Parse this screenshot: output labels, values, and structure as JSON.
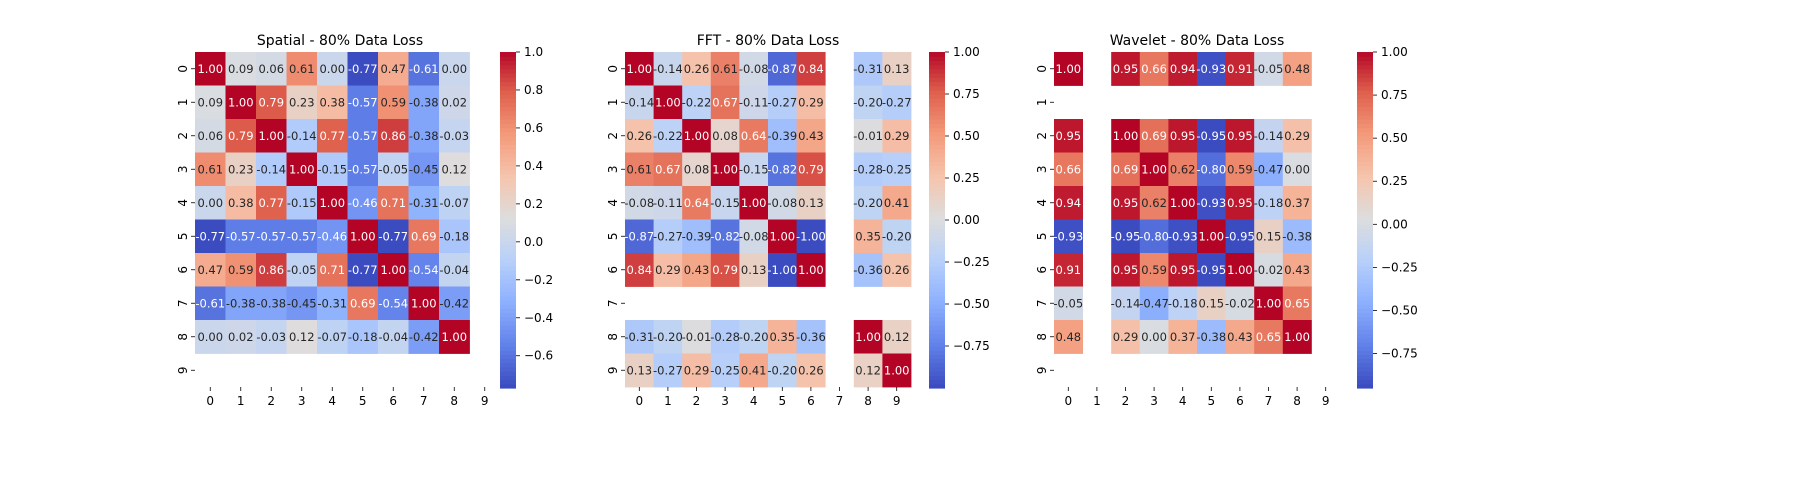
{
  "chart_data": [
    {
      "type": "heatmap",
      "title": "Spatial - 80% Data Loss",
      "row_labels": [
        "0",
        "1",
        "2",
        "3",
        "4",
        "5",
        "6",
        "7",
        "8",
        "9"
      ],
      "col_labels": [
        "0",
        "1",
        "2",
        "3",
        "4",
        "5",
        "6",
        "7",
        "8",
        "9"
      ],
      "values": [
        [
          1.0,
          0.09,
          0.06,
          0.61,
          -0.0,
          -0.77,
          0.47,
          -0.61,
          -0.0,
          null
        ],
        [
          0.09,
          1.0,
          0.79,
          0.23,
          0.38,
          -0.57,
          0.59,
          -0.38,
          0.02,
          null
        ],
        [
          0.06,
          0.79,
          1.0,
          -0.14,
          0.77,
          -0.57,
          0.86,
          -0.38,
          -0.03,
          null
        ],
        [
          0.61,
          0.23,
          -0.14,
          1.0,
          -0.15,
          -0.57,
          -0.05,
          -0.45,
          0.12,
          null
        ],
        [
          -0.0,
          0.38,
          0.77,
          -0.15,
          1.0,
          -0.46,
          0.71,
          -0.31,
          -0.07,
          null
        ],
        [
          -0.77,
          -0.57,
          -0.57,
          -0.57,
          -0.46,
          1.0,
          -0.77,
          0.69,
          -0.18,
          null
        ],
        [
          0.47,
          0.59,
          0.86,
          -0.05,
          0.71,
          -0.77,
          1.0,
          -0.54,
          -0.04,
          null
        ],
        [
          -0.61,
          -0.38,
          -0.38,
          -0.45,
          -0.31,
          0.69,
          -0.54,
          1.0,
          -0.42,
          null
        ],
        [
          -0.0,
          0.02,
          -0.03,
          0.12,
          -0.07,
          -0.18,
          -0.04,
          -0.42,
          1.0,
          null
        ],
        [
          null,
          null,
          null,
          null,
          null,
          null,
          null,
          null,
          null,
          null
        ]
      ],
      "colorbar": {
        "min": -0.77,
        "max": 1.0,
        "ticks": [
          1.0,
          0.8,
          0.6,
          0.4,
          0.2,
          0.0,
          -0.2,
          -0.4,
          -0.6
        ],
        "tick_labels": [
          "1.0",
          "0.8",
          "0.6",
          "0.4",
          "0.2",
          "0.0",
          "−0.2",
          "−0.4",
          "−0.6"
        ]
      },
      "colormap": "coolwarm"
    },
    {
      "type": "heatmap",
      "title": "FFT - 80% Data Loss",
      "row_labels": [
        "0",
        "1",
        "2",
        "3",
        "4",
        "5",
        "6",
        "7",
        "8",
        "9"
      ],
      "col_labels": [
        "0",
        "1",
        "2",
        "3",
        "4",
        "5",
        "6",
        "7",
        "8",
        "9"
      ],
      "values": [
        [
          1.0,
          -0.14,
          0.26,
          0.61,
          -0.08,
          -0.87,
          0.84,
          null,
          -0.31,
          0.13
        ],
        [
          -0.14,
          1.0,
          -0.22,
          0.67,
          -0.11,
          -0.27,
          0.29,
          null,
          -0.2,
          -0.27
        ],
        [
          0.26,
          -0.22,
          1.0,
          0.08,
          0.64,
          -0.39,
          0.43,
          null,
          -0.01,
          0.29
        ],
        [
          0.61,
          0.67,
          0.08,
          1.0,
          -0.15,
          -0.82,
          0.79,
          null,
          -0.28,
          -0.25
        ],
        [
          -0.08,
          -0.11,
          0.64,
          -0.15,
          1.0,
          -0.08,
          0.13,
          null,
          -0.2,
          0.41
        ],
        [
          -0.87,
          -0.27,
          -0.39,
          -0.82,
          -0.08,
          1.0,
          -1.0,
          null,
          0.35,
          -0.2
        ],
        [
          0.84,
          0.29,
          0.43,
          0.79,
          0.13,
          -1.0,
          1.0,
          null,
          -0.36,
          0.26
        ],
        [
          null,
          null,
          null,
          null,
          null,
          null,
          null,
          null,
          null,
          null
        ],
        [
          -0.31,
          -0.2,
          -0.01,
          -0.28,
          -0.2,
          0.35,
          -0.36,
          null,
          1.0,
          0.12
        ],
        [
          0.13,
          -0.27,
          0.29,
          -0.25,
          0.41,
          -0.2,
          0.26,
          null,
          0.12,
          1.0
        ]
      ],
      "colorbar": {
        "min": -1.0,
        "max": 1.0,
        "ticks": [
          1.0,
          0.75,
          0.5,
          0.25,
          0.0,
          -0.25,
          -0.5,
          -0.75
        ],
        "tick_labels": [
          "1.00",
          "0.75",
          "0.50",
          "0.25",
          "0.00",
          "−0.25",
          "−0.50",
          "−0.75"
        ]
      },
      "colormap": "coolwarm"
    },
    {
      "type": "heatmap",
      "title": "Wavelet - 80% Data Loss",
      "row_labels": [
        "0",
        "1",
        "2",
        "3",
        "4",
        "5",
        "6",
        "7",
        "8",
        "9"
      ],
      "col_labels": [
        "0",
        "1",
        "2",
        "3",
        "4",
        "5",
        "6",
        "7",
        "8",
        "9"
      ],
      "values": [
        [
          1.0,
          null,
          0.95,
          0.66,
          0.94,
          -0.93,
          0.91,
          -0.05,
          0.48,
          null
        ],
        [
          null,
          null,
          null,
          null,
          null,
          null,
          null,
          null,
          null,
          null
        ],
        [
          0.95,
          null,
          1.0,
          0.69,
          0.95,
          -0.95,
          0.95,
          -0.14,
          0.29,
          null
        ],
        [
          0.66,
          null,
          0.69,
          1.0,
          0.62,
          -0.8,
          0.59,
          -0.47,
          -0.0,
          null
        ],
        [
          0.94,
          null,
          0.95,
          0.62,
          1.0,
          -0.93,
          0.95,
          -0.18,
          0.37,
          null
        ],
        [
          -0.93,
          null,
          -0.95,
          -0.8,
          -0.93,
          1.0,
          -0.95,
          0.15,
          -0.38,
          null
        ],
        [
          0.91,
          null,
          0.95,
          0.59,
          0.95,
          -0.95,
          1.0,
          -0.02,
          0.43,
          null
        ],
        [
          -0.05,
          null,
          -0.14,
          -0.47,
          -0.18,
          0.15,
          -0.02,
          1.0,
          0.65,
          null
        ],
        [
          0.48,
          null,
          0.29,
          -0.0,
          0.37,
          -0.38,
          0.43,
          0.65,
          1.0,
          null
        ],
        [
          null,
          null,
          null,
          null,
          null,
          null,
          null,
          null,
          null,
          null
        ]
      ],
      "colorbar": {
        "min": -0.95,
        "max": 1.0,
        "ticks": [
          1.0,
          0.75,
          0.5,
          0.25,
          0.0,
          -0.25,
          -0.5,
          -0.75
        ],
        "tick_labels": [
          "1.00",
          "0.75",
          "0.50",
          "0.25",
          "0.00",
          "−0.25",
          "−0.50",
          "−0.75"
        ]
      },
      "colormap": "coolwarm"
    }
  ]
}
